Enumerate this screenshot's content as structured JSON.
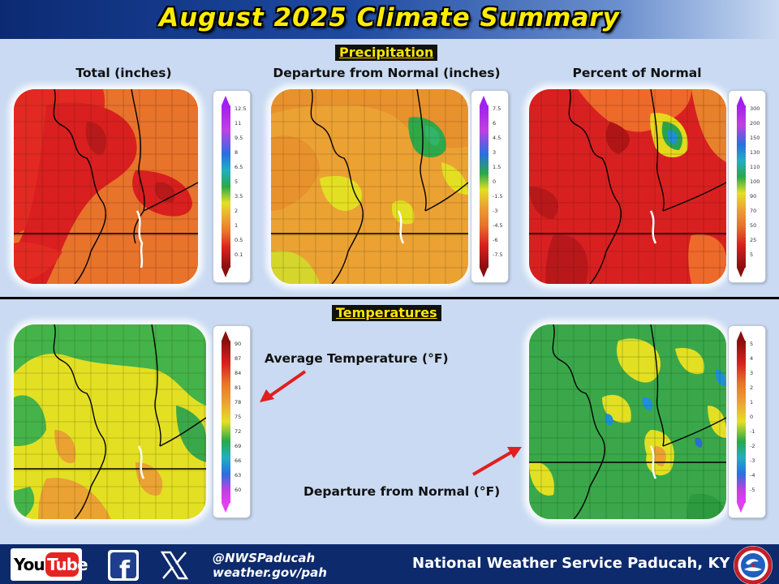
{
  "header": {
    "title": "August 2025 Climate Summary"
  },
  "sections": {
    "precipitation": "Precipitation",
    "temperatures": "Temperatures"
  },
  "maps": {
    "precip_total": {
      "caption": "Total (inches)",
      "legend_ticks": [
        "12.5",
        "11",
        "9.5",
        "8",
        "6.5",
        "5",
        "3.5",
        "2",
        "1",
        "0.5",
        "0.1"
      ]
    },
    "precip_departure": {
      "caption": "Departure from Normal (inches)",
      "legend_ticks": [
        "7.5",
        "6",
        "4.5",
        "3",
        "1.5",
        "0",
        "-1.5",
        "-3",
        "-4.5",
        "-6",
        "-7.5"
      ]
    },
    "precip_percent": {
      "caption": "Percent of Normal",
      "legend_ticks": [
        "300",
        "200",
        "150",
        "130",
        "110",
        "100",
        "90",
        "70",
        "50",
        "25",
        "5"
      ]
    },
    "temp_average": {
      "caption": "Average Temperature (°F)",
      "legend_ticks": [
        "90",
        "87",
        "84",
        "81",
        "78",
        "75",
        "72",
        "69",
        "66",
        "63",
        "60"
      ]
    },
    "temp_departure": {
      "caption": "Departure from Normal (°F)",
      "legend_ticks": [
        "5",
        "4",
        "3",
        "2",
        "1",
        "0",
        "-1",
        "-2",
        "-3",
        "-4",
        "-5"
      ]
    }
  },
  "footer": {
    "youtube_you": "You",
    "youtube_tube": "Tube",
    "facebook_glyph": "f",
    "social_handle": "@NWSPaducah",
    "website": "weather.gov/pah",
    "office": "National Weather Service Paducah, KY"
  },
  "icons": {
    "youtube": "youtube-icon",
    "facebook": "facebook-icon",
    "x": "x-icon",
    "nws": "nws-logo-icon",
    "annotation_arrow": "red-arrow-icon"
  },
  "colors": {
    "header_bg": "#0c2a73",
    "title_text": "#ffec00",
    "page_bg": "#c9daf2",
    "footer_bg": "#0d2a6c",
    "arrow_red": "#e01f1f"
  }
}
